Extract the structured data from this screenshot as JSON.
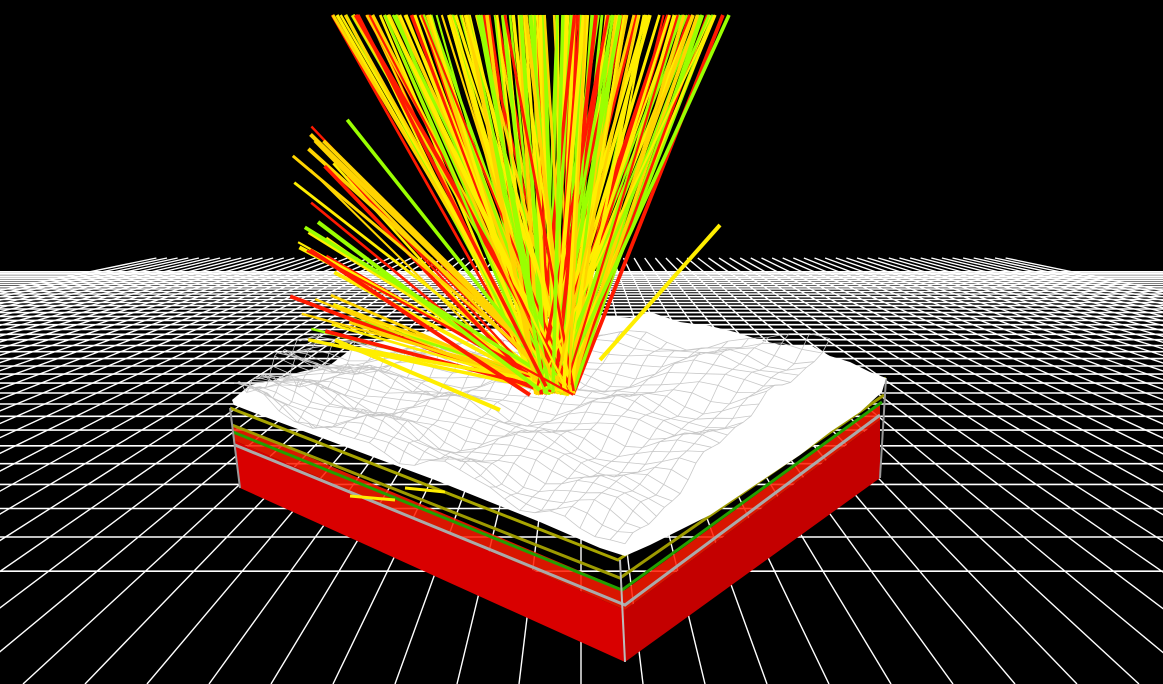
{
  "scene": {
    "description_kind": "3d-ray-tracing-view",
    "background_color": "#000000",
    "ground_grid": {
      "line_color": "#ffffff",
      "visible": true
    },
    "sample_block": {
      "substrate_color": "#e60000",
      "surface_color": "#ffffff",
      "layer_outline_colors": [
        "#b5b200",
        "#2a9d00",
        "#9a9a9a"
      ]
    },
    "ray_colors": [
      "#ff1a00",
      "#ffee00",
      "#9aff00",
      "#ffd400"
    ]
  }
}
